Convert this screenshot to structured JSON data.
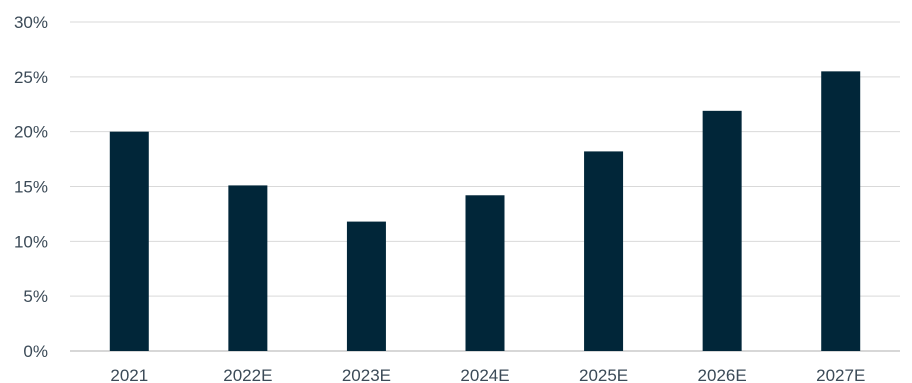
{
  "chart_data": {
    "type": "bar",
    "categories": [
      "2021",
      "2022E",
      "2023E",
      "2024E",
      "2025E",
      "2026E",
      "2027E"
    ],
    "values": [
      20.0,
      15.1,
      11.8,
      14.2,
      18.2,
      21.9,
      25.5
    ],
    "ylim": [
      0,
      30
    ],
    "yticks": [
      0,
      5,
      10,
      15,
      20,
      25,
      30
    ],
    "ytick_labels": [
      "0%",
      "5%",
      "10%",
      "15%",
      "20%",
      "25%",
      "30%"
    ],
    "title": "",
    "xlabel": "",
    "ylabel": "",
    "grid": true,
    "bar_color": "#012639",
    "grid_color": "#d9d9d9"
  }
}
